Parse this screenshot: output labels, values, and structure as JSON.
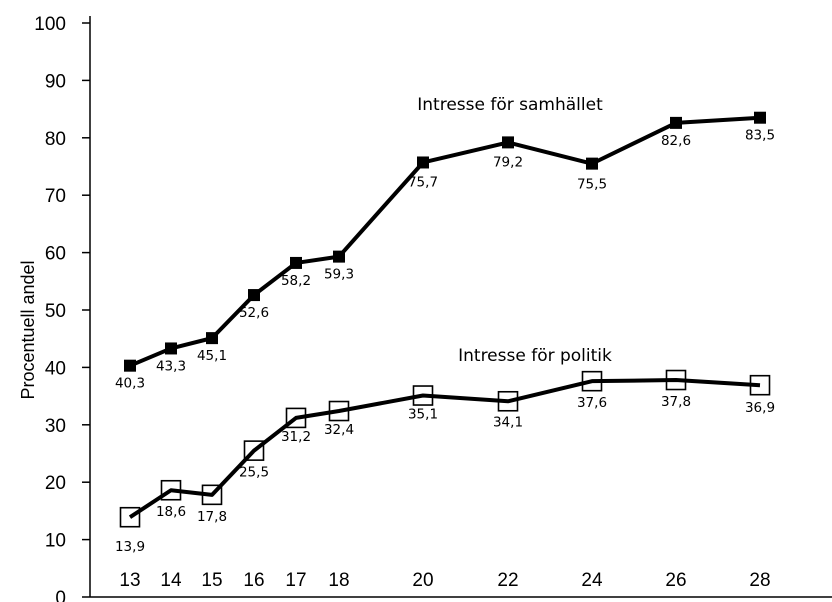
{
  "chart_data": {
    "type": "line",
    "ylabel": "Procentuell andel",
    "xlabel": "",
    "ylim": [
      0,
      100
    ],
    "y_ticks": [
      "0",
      "10",
      "20",
      "30",
      "40",
      "50",
      "60",
      "70",
      "80",
      "90",
      "100"
    ],
    "x": [
      13,
      14,
      15,
      16,
      17,
      18,
      20,
      22,
      24,
      26,
      28
    ],
    "x_tick_labels": [
      "13",
      "14",
      "15",
      "16",
      "17",
      "18",
      "20",
      "22",
      "24",
      "26",
      "28"
    ],
    "grid": false,
    "legend": "none",
    "series": [
      {
        "name": "Intresse för samhället",
        "marker": "filled-square",
        "values": [
          40.3,
          43.3,
          45.1,
          52.6,
          58.2,
          59.3,
          75.7,
          79.2,
          75.5,
          82.6,
          83.5
        ],
        "value_labels": [
          "40,3",
          "43,3",
          "45,1",
          "52,6",
          "58,2",
          "59,3",
          "75,7",
          "79,2",
          "75,5",
          "82,6",
          "83,5"
        ]
      },
      {
        "name": "Intresse för politik",
        "marker": "open-square",
        "values": [
          13.9,
          18.6,
          17.8,
          25.5,
          31.2,
          32.4,
          35.1,
          34.1,
          37.6,
          37.8,
          36.9
        ],
        "value_labels": [
          "13,9",
          "18,6",
          "17,8",
          "25,5",
          "31,2",
          "32,4",
          "35,1",
          "34,1",
          "37,6",
          "37,8",
          "36,9"
        ]
      }
    ]
  }
}
